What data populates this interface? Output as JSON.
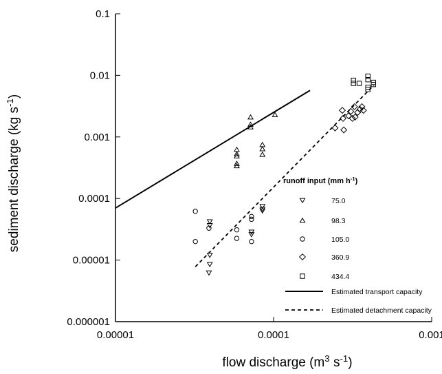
{
  "chart_data": {
    "type": "scatter",
    "xscale": "log",
    "yscale": "log",
    "xlim": [
      1e-05,
      0.001
    ],
    "ylim": [
      1e-06,
      0.1
    ],
    "x_ticks": [
      1e-05,
      0.0001,
      0.001
    ],
    "x_tick_labels": [
      "0.00001",
      "0.0001",
      "0.001"
    ],
    "y_ticks": [
      1e-06,
      1e-05,
      0.0001,
      0.001,
      0.01,
      0.1
    ],
    "y_tick_labels": [
      "0.000001",
      "0.00001",
      "0.0001",
      "0.001",
      "0.01",
      "0.1"
    ],
    "xlabel": {
      "main": "flow discharge (m",
      "sup1": "3",
      "mid": " s",
      "sup2": "-1",
      "end": ")"
    },
    "ylabel": {
      "main": "sediment discharge (kg s",
      "sup1": "-1",
      "end": ")"
    },
    "grid": false,
    "legend_title": {
      "main": "runoff input (mm h",
      "sup": "-1",
      "end": ")"
    },
    "legend_position": "right",
    "series": [
      {
        "name": "75.0",
        "marker": "triangle-down",
        "points": [
          [
            3.95e-05,
            4.2e-05
          ],
          [
            3.95e-05,
            3.65e-05
          ],
          [
            3.95e-05,
            1.2e-05
          ],
          [
            3.95e-05,
            8.5e-06
          ],
          [
            3.9e-05,
            6.2e-06
          ],
          [
            7.25e-05,
            2.85e-05
          ],
          [
            7.25e-05,
            2.6e-05
          ],
          [
            8.5e-05,
            7.45e-05
          ],
          [
            8.5e-05,
            6.7e-05
          ],
          [
            8.5e-05,
            6.3e-05
          ]
        ]
      },
      {
        "name": "98.3",
        "marker": "triangle-up",
        "points": [
          [
            5.85e-05,
            0.000625
          ],
          [
            5.85e-05,
            0.00053
          ],
          [
            5.85e-05,
            0.00049
          ],
          [
            5.85e-05,
            0.00037
          ],
          [
            5.85e-05,
            0.00034
          ],
          [
            7.15e-05,
            0.0021
          ],
          [
            7.15e-05,
            0.0016
          ],
          [
            7.15e-05,
            0.00145
          ],
          [
            8.5e-05,
            0.00075
          ],
          [
            8.5e-05,
            0.00064
          ],
          [
            8.5e-05,
            0.00052
          ],
          [
            0.000102,
            0.0023
          ]
        ]
      },
      {
        "name": "105.0",
        "marker": "circle",
        "points": [
          [
            3.2e-05,
            6.2e-05
          ],
          [
            3.2e-05,
            2e-05
          ],
          [
            3.9e-05,
            3.3e-05
          ],
          [
            5.85e-05,
            3.1e-05
          ],
          [
            5.85e-05,
            2.25e-05
          ],
          [
            7.25e-05,
            5.1e-05
          ],
          [
            7.25e-05,
            4.6e-05
          ],
          [
            7.25e-05,
            2e-05
          ]
        ]
      },
      {
        "name": "360.9",
        "marker": "diamond",
        "points": [
          [
            0.000245,
            0.0014
          ],
          [
            0.000272,
            0.0027
          ],
          [
            0.000275,
            0.002
          ],
          [
            0.000278,
            0.0013
          ],
          [
            0.000298,
            0.0022
          ],
          [
            0.000308,
            0.0026
          ],
          [
            0.000315,
            0.002
          ],
          [
            0.000325,
            0.0031
          ],
          [
            0.000328,
            0.0021
          ],
          [
            0.00034,
            0.0025
          ],
          [
            0.000352,
            0.0028
          ],
          [
            0.000362,
            0.0031
          ],
          [
            0.00037,
            0.0027
          ]
        ]
      },
      {
        "name": "434.4",
        "marker": "square",
        "points": [
          [
            0.00032,
            0.0083
          ],
          [
            0.00032,
            0.0074
          ],
          [
            0.000348,
            0.0074
          ],
          [
            0.000395,
            0.0097
          ],
          [
            0.000395,
            0.0085
          ],
          [
            0.000395,
            0.0064
          ],
          [
            0.000395,
            0.0059
          ],
          [
            0.000428,
            0.0077
          ],
          [
            0.000428,
            0.0071
          ]
        ]
      }
    ],
    "lines": [
      {
        "name": "Estimated transport capacity",
        "style": "solid",
        "points": [
          [
            1e-05,
            7e-05
          ],
          [
            0.00017,
            0.0057
          ]
        ]
      },
      {
        "name": "Estimated detachment capacity",
        "style": "dashed",
        "points": [
          [
            3.2e-05,
            7.8e-06
          ],
          [
            0.00043,
            0.0069
          ]
        ]
      }
    ],
    "colors": {
      "ink": "#000000",
      "background": "#ffffff"
    }
  }
}
